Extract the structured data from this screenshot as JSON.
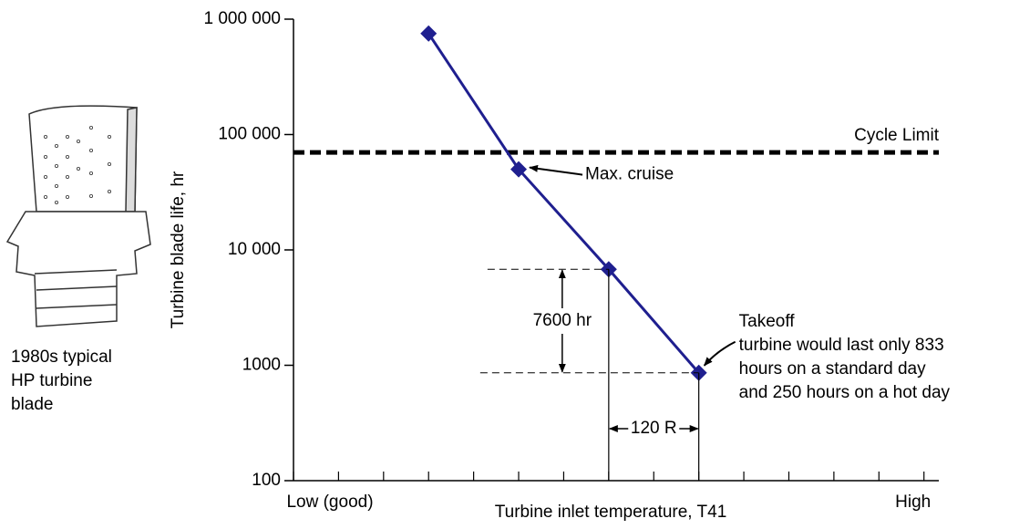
{
  "chart_data": {
    "type": "line",
    "xlabel": "Turbine inlet temperature, T41",
    "ylabel": "Turbine blade  life, hr",
    "x": [
      3,
      5,
      7,
      9
    ],
    "series": [
      {
        "name": "Turbine blade life",
        "color": "#1f1f8f",
        "values": [
          750000,
          50000,
          6800,
          860
        ]
      }
    ],
    "ylog": true,
    "ylim": [
      100,
      1000000
    ],
    "yticks": [
      100,
      1000,
      {
        "value": 10000,
        "label": "10 000"
      },
      {
        "value": 100000,
        "label": "100 000"
      },
      {
        "value": 1000000,
        "label": "1 000 000"
      }
    ],
    "xlim": [
      0,
      14.33
    ],
    "xticks": [
      {
        "value": 0,
        "label": "Low (good)"
      },
      {
        "value": 14,
        "label": "High"
      }
    ],
    "x_minor_ticks": [
      1,
      2,
      3,
      4,
      5,
      6,
      7,
      8,
      9,
      10,
      11,
      12,
      13
    ],
    "cycle_limit": {
      "label": "Cycle Limit",
      "value": 70000
    },
    "annotations": [
      "Max. cruise",
      "7600 hr",
      "120 R",
      "Takeoff",
      "turbine would last only 833",
      "hours on a  standard day",
      "and 250 hours on a hot day"
    ],
    "blade_caption": [
      "1980s typical",
      "HP turbine",
      "blade"
    ]
  }
}
